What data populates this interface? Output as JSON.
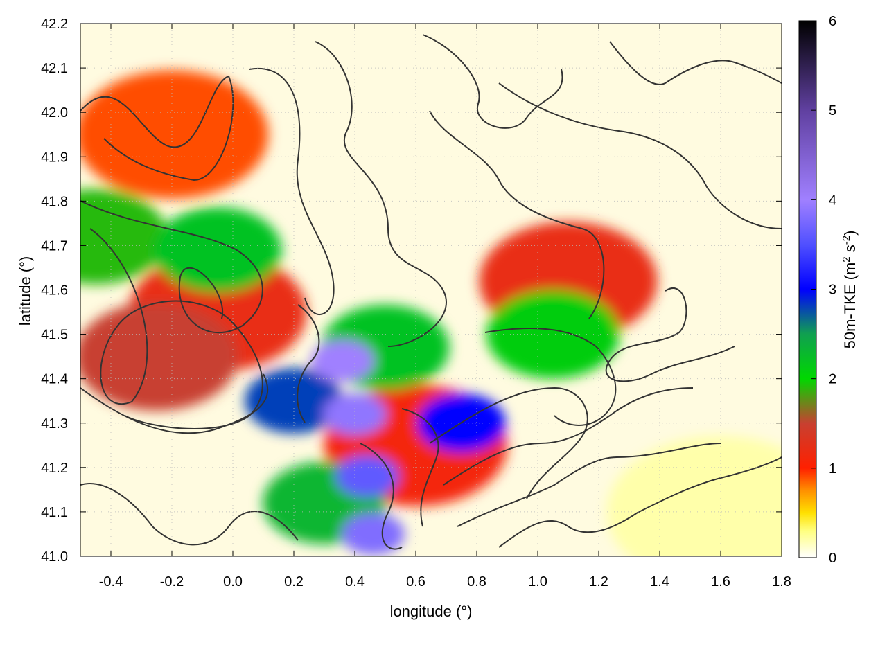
{
  "chart_data": {
    "type": "heatmap",
    "title": "",
    "xlabel": "longitude (°)",
    "ylabel": "latitude (°)",
    "colorbar_label": "50m-TKE (m",
    "colorbar_label_sup1": "2",
    "colorbar_label_mid": " s",
    "colorbar_label_sup2": "-2",
    "colorbar_label_end": ")",
    "xlim": [
      -0.5,
      1.8
    ],
    "ylim": [
      41.0,
      42.2
    ],
    "zlim": [
      0,
      6
    ],
    "x_ticks": [
      -0.4,
      -0.2,
      0.0,
      0.2,
      0.4,
      0.6,
      0.8,
      1.0,
      1.2,
      1.4,
      1.6,
      1.8
    ],
    "x_tick_labels": [
      "-0.4",
      "-0.2",
      "0.0",
      "0.2",
      "0.4",
      "0.6",
      "0.8",
      "1.0",
      "1.2",
      "1.4",
      "1.6",
      "1.8"
    ],
    "y_ticks": [
      41.0,
      41.1,
      41.2,
      41.3,
      41.4,
      41.5,
      41.6,
      41.7,
      41.8,
      41.9,
      42.0,
      42.1,
      42.2
    ],
    "y_tick_labels": [
      "41.0",
      "41.1",
      "41.2",
      "41.3",
      "41.4",
      "41.5",
      "41.6",
      "41.7",
      "41.8",
      "41.9",
      "42.0",
      "42.1",
      "42.2"
    ],
    "colorbar_ticks": [
      0,
      1,
      2,
      3,
      4,
      5,
      6
    ],
    "colorbar_tick_labels": [
      "0",
      "1",
      "2",
      "3",
      "4",
      "5",
      "6"
    ],
    "colormap": [
      {
        "v": 0.0,
        "color": "#ffffff"
      },
      {
        "v": 0.3,
        "color": "#ffff80"
      },
      {
        "v": 0.5,
        "color": "#ffe000"
      },
      {
        "v": 0.75,
        "color": "#ff9000"
      },
      {
        "v": 1.0,
        "color": "#ff2000"
      },
      {
        "v": 1.5,
        "color": "#c84030"
      },
      {
        "v": 2.0,
        "color": "#00d800"
      },
      {
        "v": 2.5,
        "color": "#10a050"
      },
      {
        "v": 3.0,
        "color": "#0000ff"
      },
      {
        "v": 3.5,
        "color": "#5050ff"
      },
      {
        "v": 4.0,
        "color": "#a080ff"
      },
      {
        "v": 5.0,
        "color": "#6040a0"
      },
      {
        "v": 6.0,
        "color": "#000000"
      }
    ],
    "grid": true,
    "tke_regions": [
      {
        "lon": -0.25,
        "lat": 41.45,
        "tke": 1.5
      },
      {
        "lon": -0.05,
        "lat": 41.55,
        "tke": 1.2
      },
      {
        "lon": -0.45,
        "lat": 41.72,
        "tke": 1.9
      },
      {
        "lon": -0.05,
        "lat": 41.69,
        "tke": 2.2
      },
      {
        "lon": 0.2,
        "lat": 41.35,
        "tke": 2.8
      },
      {
        "lon": 0.36,
        "lat": 41.44,
        "tke": 4.0
      },
      {
        "lon": 0.4,
        "lat": 41.32,
        "tke": 3.9
      },
      {
        "lon": 0.5,
        "lat": 41.47,
        "tke": 2.2
      },
      {
        "lon": 0.44,
        "lat": 41.18,
        "tke": 3.6
      },
      {
        "lon": 0.46,
        "lat": 41.05,
        "tke": 3.8
      },
      {
        "lon": 0.3,
        "lat": 41.12,
        "tke": 2.3
      },
      {
        "lon": 0.75,
        "lat": 41.3,
        "tke": 3.0
      },
      {
        "lon": 1.05,
        "lat": 41.5,
        "tke": 2.1
      },
      {
        "lon": 1.1,
        "lat": 41.62,
        "tke": 1.2
      },
      {
        "lon": -0.2,
        "lat": 41.95,
        "tke": 0.9
      },
      {
        "lon": 0.6,
        "lat": 41.25,
        "tke": 1.1
      },
      {
        "lon": 1.6,
        "lat": 41.1,
        "tke": 0.2
      }
    ]
  }
}
